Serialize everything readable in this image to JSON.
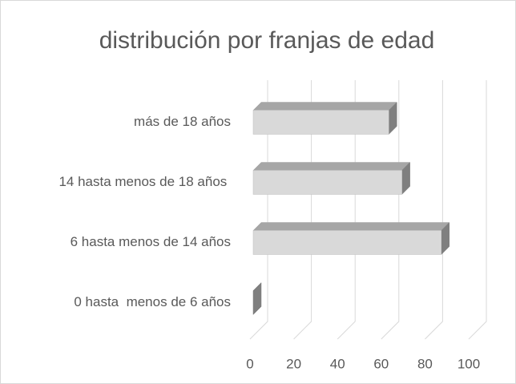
{
  "chart_data": {
    "type": "bar3d_horizontal",
    "title": "distribución por franjas de edad",
    "categories": [
      "0 hasta  menos de 6 años",
      "6 hasta menos de 14 años",
      "14 hasta menos de 18 años ",
      "más de 18 años"
    ],
    "values": [
      0,
      86,
      68,
      62
    ],
    "color": "#d9d9d9",
    "xlim": [
      0,
      100
    ],
    "xticks": [
      0,
      20,
      40,
      60,
      80,
      100
    ],
    "grid": true
  }
}
